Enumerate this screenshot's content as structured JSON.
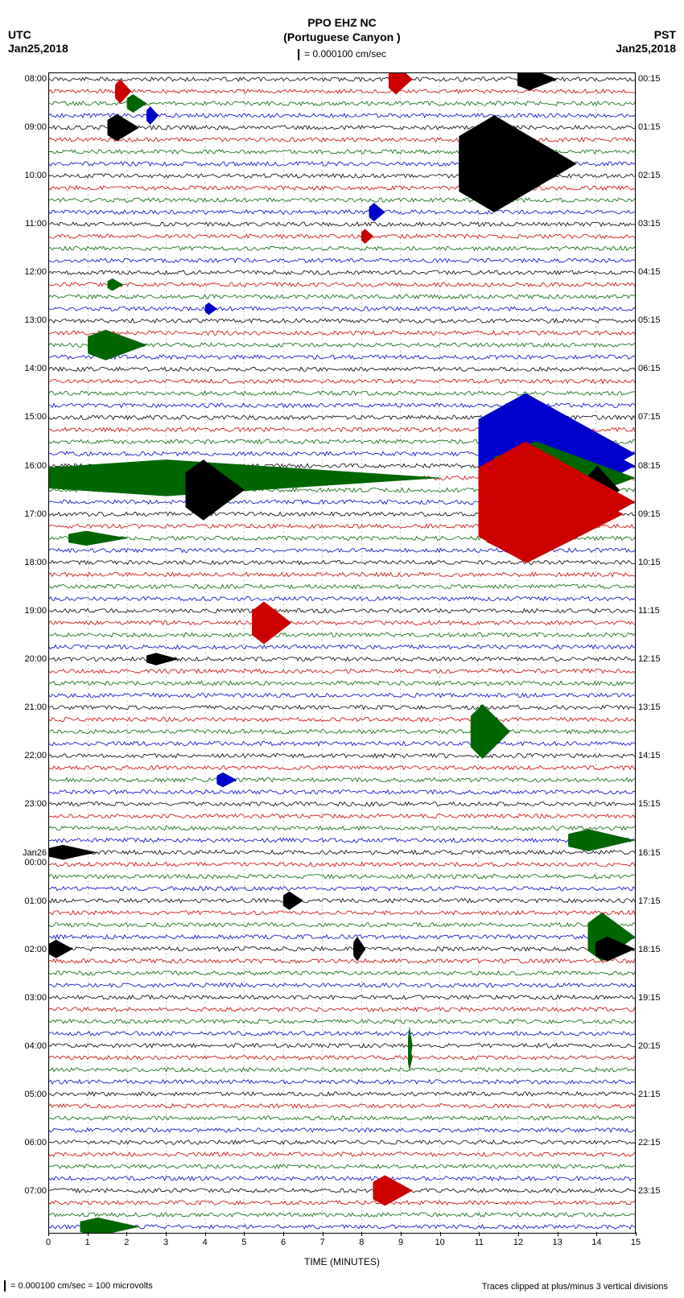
{
  "header": {
    "title1": "PPO EHZ NC",
    "title2": "(Portuguese Canyon )",
    "scale_label": "= 0.000100 cm/sec",
    "left_tz": "UTC",
    "left_date": "Jan25,2018",
    "right_tz": "PST",
    "right_date": "Jan25,2018"
  },
  "footer": {
    "left": "= 0.000100 cm/sec =    100 microvolts",
    "right": "Traces clipped at plus/minus 3 vertical divisions"
  },
  "plot": {
    "xlabel": "TIME (MINUTES)",
    "xticks": [
      0,
      1,
      2,
      3,
      4,
      5,
      6,
      7,
      8,
      9,
      10,
      11,
      12,
      13,
      14,
      15
    ],
    "trace_colors": [
      "#000000",
      "#cc0000",
      "#006600",
      "#0000cc"
    ],
    "num_traces": 96,
    "background": "#ffffff",
    "grid_color": "#888888",
    "utc_hours": [
      "08:00",
      "09:00",
      "10:00",
      "11:00",
      "12:00",
      "13:00",
      "14:00",
      "15:00",
      "16:00",
      "17:00",
      "18:00",
      "19:00",
      "20:00",
      "21:00",
      "22:00",
      "23:00",
      "Jan26\n00:00",
      "01:00",
      "02:00",
      "03:00",
      "04:00",
      "05:00",
      "06:00",
      "07:00"
    ],
    "pst_hours": [
      "00:15",
      "01:15",
      "02:15",
      "03:15",
      "04:15",
      "05:15",
      "06:15",
      "07:15",
      "08:15",
      "09:15",
      "10:15",
      "11:15",
      "12:15",
      "13:15",
      "14:15",
      "15:15",
      "16:15",
      "17:15",
      "18:15",
      "19:15",
      "20:15",
      "21:15",
      "22:15",
      "23:15"
    ],
    "events": [
      {
        "trace": 0,
        "start_min": 8.7,
        "dur_min": 0.6,
        "amp": 2.5,
        "color": "#cc0000"
      },
      {
        "trace": 0,
        "start_min": 12.0,
        "dur_min": 1.0,
        "amp": 1.8,
        "color": "#000000"
      },
      {
        "trace": 1,
        "start_min": 1.7,
        "dur_min": 0.4,
        "amp": 2.0,
        "color": "#cc0000"
      },
      {
        "trace": 2,
        "start_min": 2.0,
        "dur_min": 0.5,
        "amp": 1.5,
        "color": "#006600"
      },
      {
        "trace": 3,
        "start_min": 2.5,
        "dur_min": 0.3,
        "amp": 1.5,
        "color": "#0000cc"
      },
      {
        "trace": 4,
        "start_min": 1.5,
        "dur_min": 0.8,
        "amp": 2.2,
        "color": "#000000"
      },
      {
        "trace": 7,
        "start_min": 10.5,
        "dur_min": 3.0,
        "amp": 8.0,
        "color": "#000000"
      },
      {
        "trace": 8,
        "start_min": 10.8,
        "dur_min": 2.2,
        "amp": 5.0,
        "color": "#000000"
      },
      {
        "trace": 11,
        "start_min": 8.2,
        "dur_min": 0.4,
        "amp": 1.5,
        "color": "#0000cc"
      },
      {
        "trace": 13,
        "start_min": 8.0,
        "dur_min": 0.3,
        "amp": 1.2,
        "color": "#cc0000"
      },
      {
        "trace": 17,
        "start_min": 1.5,
        "dur_min": 0.4,
        "amp": 1.0,
        "color": "#006600"
      },
      {
        "trace": 19,
        "start_min": 4.0,
        "dur_min": 0.3,
        "amp": 1.0,
        "color": "#0000cc"
      },
      {
        "trace": 22,
        "start_min": 1.0,
        "dur_min": 1.5,
        "amp": 2.5,
        "color": "#006600"
      },
      {
        "trace": 31,
        "start_min": 11.0,
        "dur_min": 4.0,
        "amp": 10.0,
        "color": "#0000cc"
      },
      {
        "trace": 32,
        "start_min": 11.2,
        "dur_min": 3.8,
        "amp": 9.0,
        "color": "#0000cc"
      },
      {
        "trace": 33,
        "start_min": 0.0,
        "dur_min": 10.0,
        "amp": 3.0,
        "color": "#006600"
      },
      {
        "trace": 33,
        "start_min": 11.4,
        "dur_min": 3.6,
        "amp": 6.0,
        "color": "#006600"
      },
      {
        "trace": 34,
        "start_min": 3.5,
        "dur_min": 1.5,
        "amp": 5.0,
        "color": "#000000"
      },
      {
        "trace": 34,
        "start_min": 13.8,
        "dur_min": 0.8,
        "amp": 4.0,
        "color": "#000000"
      },
      {
        "trace": 35,
        "start_min": 11.0,
        "dur_min": 4.0,
        "amp": 10.0,
        "color": "#cc0000"
      },
      {
        "trace": 36,
        "start_min": 11.2,
        "dur_min": 3.5,
        "amp": 8.0,
        "color": "#cc0000"
      },
      {
        "trace": 38,
        "start_min": 0.5,
        "dur_min": 1.5,
        "amp": 1.2,
        "color": "#006600"
      },
      {
        "trace": 45,
        "start_min": 5.2,
        "dur_min": 1.0,
        "amp": 3.5,
        "color": "#cc0000"
      },
      {
        "trace": 48,
        "start_min": 2.5,
        "dur_min": 0.8,
        "amp": 1.0,
        "color": "#000000"
      },
      {
        "trace": 54,
        "start_min": 10.8,
        "dur_min": 1.0,
        "amp": 4.5,
        "color": "#006600"
      },
      {
        "trace": 58,
        "start_min": 4.3,
        "dur_min": 0.5,
        "amp": 1.2,
        "color": "#0000cc"
      },
      {
        "trace": 63,
        "start_min": 13.3,
        "dur_min": 1.7,
        "amp": 1.8,
        "color": "#006600"
      },
      {
        "trace": 64,
        "start_min": 0.0,
        "dur_min": 1.2,
        "amp": 1.2,
        "color": "#000000"
      },
      {
        "trace": 68,
        "start_min": 6.0,
        "dur_min": 0.5,
        "amp": 1.5,
        "color": "#000000"
      },
      {
        "trace": 71,
        "start_min": 13.8,
        "dur_min": 1.2,
        "amp": 4.0,
        "color": "#006600"
      },
      {
        "trace": 72,
        "start_min": 0.0,
        "dur_min": 0.6,
        "amp": 1.5,
        "color": "#000000"
      },
      {
        "trace": 72,
        "start_min": 7.8,
        "dur_min": 0.3,
        "amp": 2.0,
        "color": "#000000"
      },
      {
        "trace": 72,
        "start_min": 14.0,
        "dur_min": 1.0,
        "amp": 2.0,
        "color": "#000000"
      },
      {
        "trace": 80,
        "start_min": 9.2,
        "dur_min": 0.1,
        "amp": 3.0,
        "color": "#006600"
      },
      {
        "trace": 81,
        "start_min": 9.2,
        "dur_min": 0.1,
        "amp": 2.0,
        "color": "#006600"
      },
      {
        "trace": 92,
        "start_min": 8.3,
        "dur_min": 1.0,
        "amp": 2.5,
        "color": "#cc0000"
      },
      {
        "trace": 95,
        "start_min": 0.8,
        "dur_min": 1.5,
        "amp": 1.5,
        "color": "#006600"
      }
    ]
  }
}
